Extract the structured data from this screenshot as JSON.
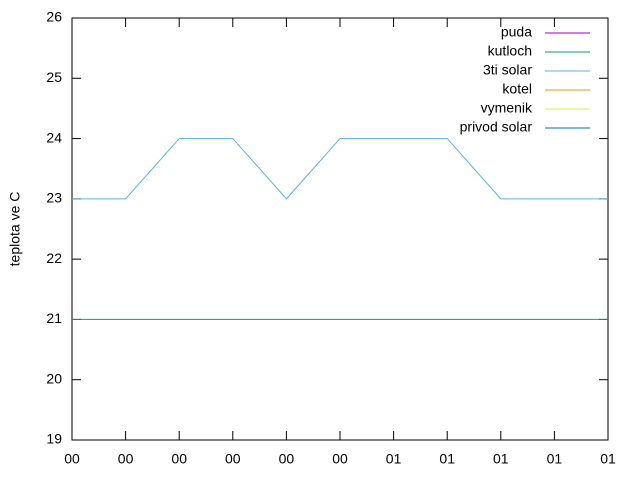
{
  "chart_data": {
    "type": "line",
    "ylabel": "teplota ve C",
    "categories": [
      "00",
      "00",
      "00",
      "00",
      "00",
      "00",
      "01",
      "01",
      "01",
      "01",
      "01"
    ],
    "ylim": [
      19,
      26
    ],
    "yticks": [
      19,
      20,
      21,
      22,
      23,
      24,
      25,
      26
    ],
    "legend": "top-right",
    "series": [
      {
        "name": "puda",
        "color": "#9400d3",
        "values": [
          null,
          null,
          null,
          null,
          null,
          null,
          null,
          null,
          null,
          null,
          null
        ]
      },
      {
        "name": "kutloch",
        "color": "#009e73",
        "values": [
          21,
          21,
          21,
          21,
          21,
          21,
          21,
          21,
          21,
          21,
          21
        ]
      },
      {
        "name": "3ti solar",
        "color": "#56b4e9",
        "values": [
          23,
          23,
          24,
          24,
          23,
          24,
          24,
          24,
          23,
          23,
          23
        ]
      },
      {
        "name": "kotel",
        "color": "#e69f00",
        "values": [
          null,
          null,
          null,
          null,
          null,
          null,
          null,
          null,
          null,
          null,
          null
        ]
      },
      {
        "name": "vymenik",
        "color": "#f0e442",
        "values": [
          null,
          null,
          null,
          null,
          null,
          null,
          null,
          null,
          null,
          null,
          null
        ]
      },
      {
        "name": "privod solar",
        "color": "#0072b2",
        "values": [
          null,
          null,
          null,
          null,
          null,
          null,
          null,
          null,
          null,
          null,
          null
        ]
      }
    ]
  }
}
